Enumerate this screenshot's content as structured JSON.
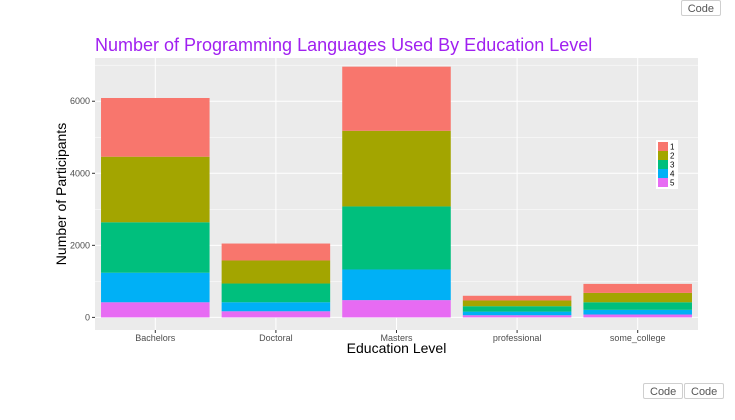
{
  "buttons": {
    "code_top": "Code",
    "code_bottom_1": "Code",
    "code_bottom_2": "Code"
  },
  "chart_data": {
    "type": "bar",
    "stacked": true,
    "title": "Number of Programming Languages Used By Education Level",
    "xlabel": "Education Level",
    "ylabel": "Number of Participants",
    "categories": [
      "Bachelors",
      "Doctoral",
      "Masters",
      "professional",
      "some_college"
    ],
    "yticks": [
      0,
      2000,
      4000,
      6000
    ],
    "ylim": [
      -350,
      7200
    ],
    "grid": true,
    "legend_placement": "right",
    "legend_entries": [
      "1",
      "2",
      "3",
      "4",
      "5"
    ],
    "series": [
      {
        "name": "1",
        "color": "#F8766D",
        "values": [
          1630,
          470,
          1780,
          130,
          250
        ]
      },
      {
        "name": "2",
        "color": "#A3A500",
        "values": [
          1820,
          640,
          2100,
          160,
          260
        ]
      },
      {
        "name": "3",
        "color": "#00BF7D",
        "values": [
          1400,
          520,
          1750,
          150,
          210
        ]
      },
      {
        "name": "4",
        "color": "#00B0F6",
        "values": [
          820,
          250,
          850,
          100,
          130
        ]
      },
      {
        "name": "5",
        "color": "#E76BF3",
        "values": [
          420,
          170,
          480,
          60,
          80
        ]
      }
    ],
    "colors": {
      "title": "#A020F0",
      "panel_bg": "#EBEBEB",
      "grid": "#FFFFFF"
    }
  }
}
